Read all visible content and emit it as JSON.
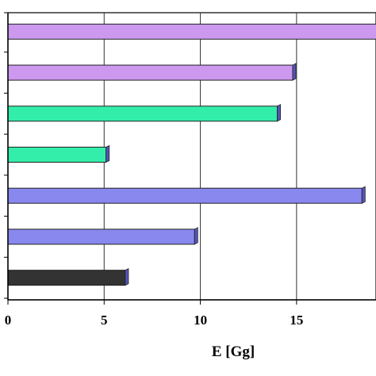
{
  "chart_data": {
    "type": "bar",
    "orientation": "horizontal",
    "xlabel": "E [Gg]",
    "ylabel": "",
    "title": "",
    "xlim": [
      0,
      19.5
    ],
    "x_ticks": [
      0,
      5,
      10,
      15
    ],
    "grid": "vertical",
    "legend": "none",
    "bars": [
      {
        "value": 19.5,
        "color": "#cc99ee"
      },
      {
        "value": 14.8,
        "color": "#cc99ee"
      },
      {
        "value": 14.0,
        "color": "#33eeaa"
      },
      {
        "value": 5.1,
        "color": "#33eeaa"
      },
      {
        "value": 18.4,
        "color": "#8888ee"
      },
      {
        "value": 9.7,
        "color": "#8888ee"
      },
      {
        "value": 6.1,
        "color": "#333333"
      }
    ]
  }
}
